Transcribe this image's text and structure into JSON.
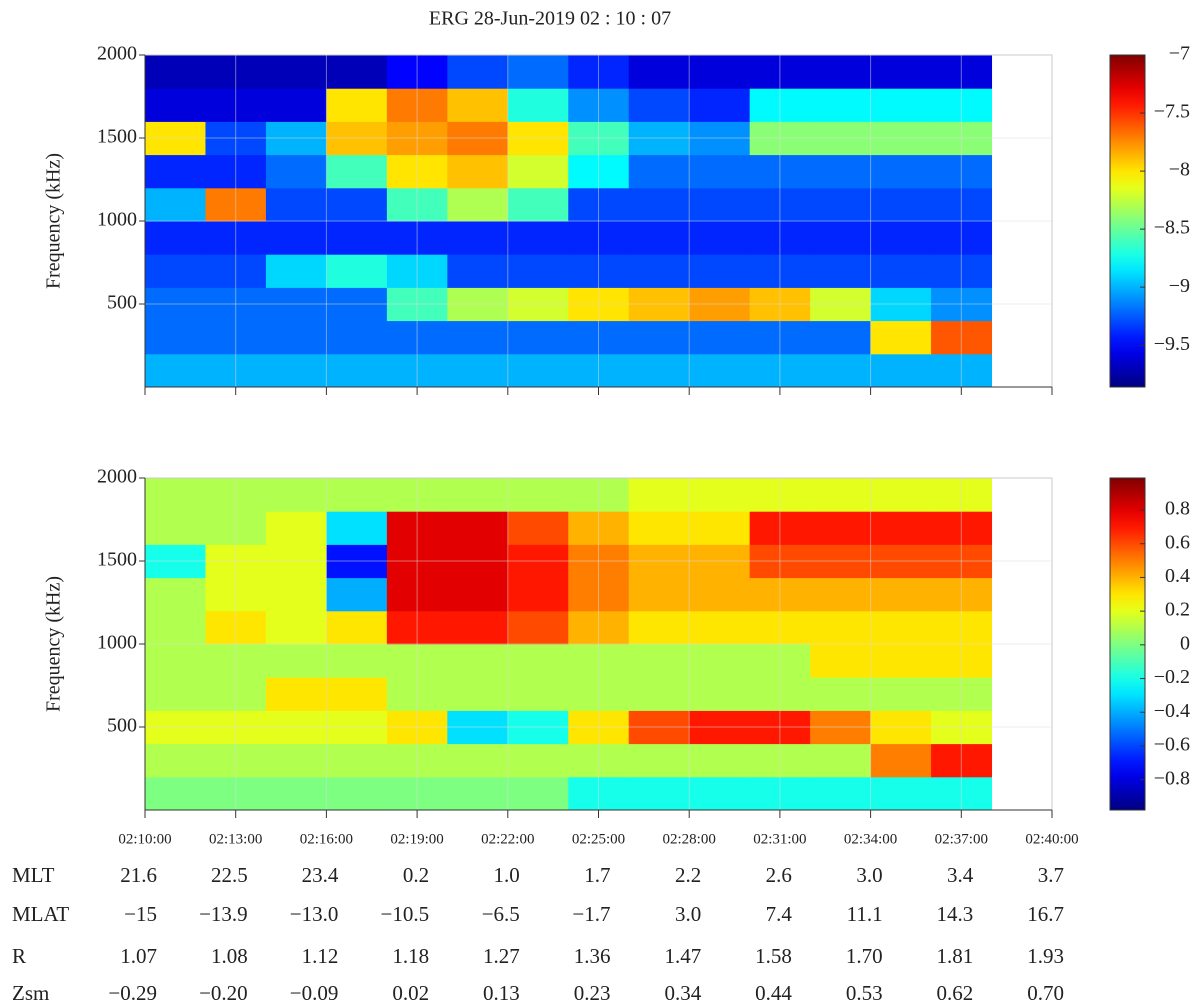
{
  "title": "ERG  28-Jun-2019  02 : 10 : 07",
  "chart_data": [
    {
      "type": "heatmap",
      "ylabel": "Frequency (kHz)",
      "colormap": "jet",
      "grid": true,
      "xlim": [
        "02:10:00",
        "02:40:00"
      ],
      "xticks": [
        "02:10:00",
        "02:13:00",
        "02:16:00",
        "02:19:00",
        "02:22:00",
        "02:25:00",
        "02:28:00",
        "02:31:00",
        "02:34:00",
        "02:37:00",
        "02:40:00"
      ],
      "ylim": [
        0,
        2000
      ],
      "yticks": [
        500,
        1000,
        1500,
        2000
      ],
      "x_edges": [
        "02:10:00",
        "02:12:00",
        "02:14:00",
        "02:16:00",
        "02:18:00",
        "02:20:00",
        "02:22:00",
        "02:24:00",
        "02:26:00",
        "02:28:00",
        "02:30:00",
        "02:32:00",
        "02:34:00",
        "02:36:00",
        "02:38:00"
      ],
      "y_edges": [
        0,
        200,
        400,
        600,
        800,
        1000,
        1200,
        1400,
        1600,
        1800,
        2000
      ],
      "zlim": [
        -9.86,
        -7
      ],
      "zticks": [
        {
          "value": -7,
          "label": "−7"
        },
        {
          "value": -7.5,
          "label": "−7.5"
        },
        {
          "value": -8,
          "label": "−8"
        },
        {
          "value": -8.5,
          "label": "−8.5"
        },
        {
          "value": -9,
          "label": "−9"
        },
        {
          "value": -9.5,
          "label": "−9.5"
        }
      ],
      "z": [
        [
          -9.0,
          -9.0,
          -9.0,
          -9.0,
          -9.0,
          -9.0,
          -9.0,
          -9.0,
          -9.0,
          -9.0,
          -9.0,
          -9.0,
          -9.0,
          -9.0
        ],
        [
          -9.2,
          -9.2,
          -9.2,
          -9.2,
          -9.2,
          -9.2,
          -9.2,
          -9.2,
          -9.2,
          -9.2,
          -9.2,
          -9.2,
          -8.0,
          -7.6
        ],
        [
          -9.2,
          -9.2,
          -9.2,
          -9.2,
          -8.6,
          -8.3,
          -8.2,
          -8.0,
          -7.9,
          -7.8,
          -7.9,
          -8.2,
          -8.9,
          -9.1
        ],
        [
          -9.3,
          -9.3,
          -8.9,
          -8.7,
          -8.9,
          -9.3,
          -9.3,
          -9.3,
          -9.3,
          -9.3,
          -9.3,
          -9.3,
          -9.3,
          -9.3
        ],
        [
          -9.4,
          -9.4,
          -9.4,
          -9.4,
          -9.4,
          -9.4,
          -9.4,
          -9.4,
          -9.4,
          -9.4,
          -9.4,
          -9.4,
          -9.4,
          -9.4
        ],
        [
          -9.0,
          -7.7,
          -9.3,
          -9.3,
          -8.6,
          -8.3,
          -8.6,
          -9.3,
          -9.3,
          -9.3,
          -9.3,
          -9.3,
          -9.3,
          -9.3
        ],
        [
          -9.4,
          -9.4,
          -9.2,
          -8.6,
          -8.0,
          -7.9,
          -8.2,
          -8.8,
          -9.2,
          -9.2,
          -9.2,
          -9.2,
          -9.2,
          -9.2
        ],
        [
          -8.0,
          -9.3,
          -9.0,
          -7.9,
          -7.8,
          -7.7,
          -8.0,
          -8.6,
          -9.0,
          -9.1,
          -8.4,
          -8.4,
          -8.4,
          -8.4
        ],
        [
          -9.6,
          -9.6,
          -9.6,
          -8.0,
          -7.7,
          -7.9,
          -8.7,
          -9.1,
          -9.3,
          -9.4,
          -8.8,
          -8.8,
          -8.8,
          -8.8
        ],
        [
          -9.7,
          -9.7,
          -9.7,
          -9.7,
          -9.5,
          -9.3,
          -9.2,
          -9.4,
          -9.6,
          -9.6,
          -9.6,
          -9.6,
          -9.6,
          -9.6
        ]
      ]
    },
    {
      "type": "heatmap",
      "ylabel": "Frequency (kHz)",
      "colormap": "jet",
      "grid": true,
      "xlim": [
        "02:10:00",
        "02:40:00"
      ],
      "xticks": [
        "02:10:00",
        "02:13:00",
        "02:16:00",
        "02:19:00",
        "02:22:00",
        "02:25:00",
        "02:28:00",
        "02:31:00",
        "02:34:00",
        "02:37:00",
        "02:40:00"
      ],
      "ylim": [
        0,
        2000
      ],
      "yticks": [
        500,
        1000,
        1500,
        2000
      ],
      "x_edges": [
        "02:10:00",
        "02:12:00",
        "02:14:00",
        "02:16:00",
        "02:18:00",
        "02:20:00",
        "02:22:00",
        "02:24:00",
        "02:26:00",
        "02:28:00",
        "02:30:00",
        "02:32:00",
        "02:34:00",
        "02:36:00",
        "02:38:00"
      ],
      "y_edges": [
        0,
        200,
        400,
        600,
        800,
        1000,
        1200,
        1400,
        1600,
        1800,
        2000
      ],
      "zlim": [
        -0.98,
        0.99
      ],
      "zticks": [
        0.8,
        0.6,
        0.4,
        0.2,
        0,
        {
          "value": -0.2,
          "label": "−0.2"
        },
        {
          "value": -0.4,
          "label": "−0.4"
        },
        {
          "value": -0.6,
          "label": "−0.6"
        },
        {
          "value": -0.8,
          "label": "−0.8"
        }
      ],
      "z": [
        [
          0.0,
          0.0,
          0.0,
          0.0,
          0.0,
          0.0,
          0.0,
          -0.2,
          -0.2,
          -0.2,
          -0.2,
          -0.2,
          -0.2,
          -0.2
        ],
        [
          0.1,
          0.1,
          0.1,
          0.1,
          0.1,
          0.1,
          0.1,
          0.1,
          0.1,
          0.1,
          0.1,
          0.1,
          0.5,
          0.7
        ],
        [
          0.2,
          0.2,
          0.2,
          0.2,
          0.3,
          -0.3,
          -0.2,
          0.3,
          0.6,
          0.7,
          0.7,
          0.5,
          0.3,
          0.2
        ],
        [
          0.1,
          0.1,
          0.3,
          0.3,
          0.1,
          0.1,
          0.1,
          0.1,
          0.1,
          0.1,
          0.1,
          0.1,
          0.1,
          0.1
        ],
        [
          0.1,
          0.1,
          0.1,
          0.1,
          0.1,
          0.1,
          0.1,
          0.1,
          0.1,
          0.1,
          0.1,
          0.3,
          0.3,
          0.3
        ],
        [
          0.1,
          0.3,
          0.2,
          0.3,
          0.7,
          0.7,
          0.6,
          0.4,
          0.3,
          0.3,
          0.3,
          0.3,
          0.3,
          0.3
        ],
        [
          0.1,
          0.2,
          0.2,
          -0.4,
          0.8,
          0.8,
          0.7,
          0.5,
          0.4,
          0.4,
          0.4,
          0.4,
          0.4,
          0.4
        ],
        [
          -0.2,
          0.2,
          0.2,
          -0.7,
          0.8,
          0.8,
          0.7,
          0.5,
          0.4,
          0.4,
          0.6,
          0.6,
          0.6,
          0.6
        ],
        [
          0.1,
          0.1,
          0.2,
          -0.3,
          0.8,
          0.8,
          0.6,
          0.4,
          0.3,
          0.3,
          0.7,
          0.7,
          0.7,
          0.7
        ],
        [
          0.1,
          0.1,
          0.1,
          0.1,
          0.1,
          0.1,
          0.1,
          0.1,
          0.2,
          0.2,
          0.2,
          0.2,
          0.2,
          0.2
        ]
      ]
    }
  ],
  "ephemeris": {
    "rows": [
      {
        "label": "MLT",
        "values": [
          "21.6",
          "22.5",
          "23.4",
          "0.2",
          "1.0",
          "1.7",
          "2.2",
          "2.6",
          "3.0",
          "3.4",
          "3.7"
        ]
      },
      {
        "label": "MLAT",
        "values": [
          "−15",
          "−13.9",
          "−13.0",
          "−10.5",
          "−6.5",
          "−1.7",
          "3.0",
          "7.4",
          "11.1",
          "14.3",
          "16.7"
        ]
      },
      {
        "label": "R",
        "values": [
          "1.07",
          "1.08",
          "1.12",
          "1.18",
          "1.27",
          "1.36",
          "1.47",
          "1.58",
          "1.70",
          "1.81",
          "1.93"
        ]
      },
      {
        "label": "Zsm",
        "values": [
          "−0.29",
          "−0.20",
          "−0.09",
          "0.02",
          "0.13",
          "0.23",
          "0.34",
          "0.44",
          "0.53",
          "0.62",
          "0.70"
        ]
      }
    ]
  }
}
